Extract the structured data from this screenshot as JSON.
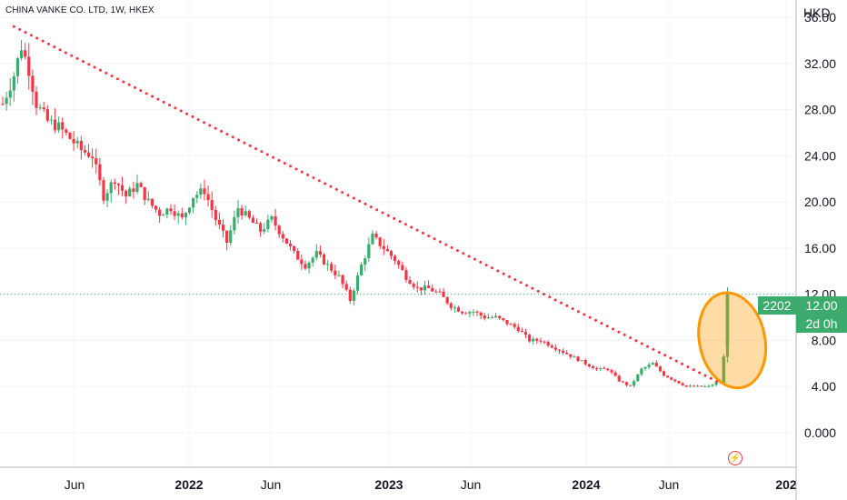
{
  "header": {
    "symbol_title": "CHINA VANKE CO. LTD, 1W, HKEX",
    "currency": "HKD"
  },
  "price_label": {
    "countdown_value": "2202",
    "price": "12.00",
    "time_left": "2d 0h"
  },
  "icons": {
    "flash": "lightning-icon"
  },
  "colors": {
    "up": "#3cab6d",
    "down": "#f23645",
    "trendline": "#f23645",
    "highlight": "#ff9800"
  },
  "chart_data": {
    "type": "candlestick",
    "title": "CHINA VANKE CO. LTD, 1W, HKEX",
    "y_axis": {
      "unit": "HKD",
      "ticks": [
        "36.00",
        "32.00",
        "28.00",
        "24.00",
        "20.00",
        "16.00",
        "12.00",
        "8.00",
        "4.00",
        "0.000"
      ],
      "range": [
        -3,
        37.5
      ]
    },
    "x_axis": {
      "labels": [
        "Jun",
        "2022",
        "Jun",
        "2023",
        "Jun",
        "2024",
        "Jun",
        "202"
      ],
      "range": [
        "2021-01-15",
        "2024-11-08"
      ]
    },
    "grid": true,
    "series_close_approx": [
      [
        "2021-01-15",
        28.5
      ],
      [
        "2021-02-05",
        31.0
      ],
      [
        "2021-02-19",
        33.5
      ],
      [
        "2021-03-05",
        31.5
      ],
      [
        "2021-03-19",
        28.5
      ],
      [
        "2021-04-09",
        27.0
      ],
      [
        "2021-04-30",
        26.5
      ],
      [
        "2021-05-21",
        25.5
      ],
      [
        "2021-06-11",
        24.5
      ],
      [
        "2021-07-02",
        24.0
      ],
      [
        "2021-07-23",
        20.5
      ],
      [
        "2021-08-13",
        22.0
      ],
      [
        "2021-09-03",
        20.5
      ],
      [
        "2021-09-24",
        21.5
      ],
      [
        "2021-10-15",
        20.0
      ],
      [
        "2021-11-05",
        19.0
      ],
      [
        "2021-11-26",
        19.5
      ],
      [
        "2021-12-17",
        18.5
      ],
      [
        "2022-01-07",
        20.5
      ],
      [
        "2022-01-28",
        21.0
      ],
      [
        "2022-02-18",
        18.5
      ],
      [
        "2022-03-11",
        16.5
      ],
      [
        "2022-04-01",
        19.5
      ],
      [
        "2022-04-22",
        18.5
      ],
      [
        "2022-05-13",
        17.5
      ],
      [
        "2022-06-03",
        18.5
      ],
      [
        "2022-06-24",
        17.0
      ],
      [
        "2022-07-15",
        15.5
      ],
      [
        "2022-08-05",
        14.5
      ],
      [
        "2022-08-26",
        15.5
      ],
      [
        "2022-09-16",
        14.5
      ],
      [
        "2022-10-07",
        13.5
      ],
      [
        "2022-10-28",
        11.5
      ],
      [
        "2022-11-18",
        14.5
      ],
      [
        "2022-12-09",
        17.0
      ],
      [
        "2022-12-30",
        16.0
      ],
      [
        "2023-01-20",
        15.0
      ],
      [
        "2023-02-10",
        13.5
      ],
      [
        "2023-03-03",
        12.5
      ],
      [
        "2023-03-24",
        12.5
      ],
      [
        "2023-04-14",
        12.0
      ],
      [
        "2023-05-05",
        11.0
      ],
      [
        "2023-05-26",
        10.5
      ],
      [
        "2023-06-16",
        10.5
      ],
      [
        "2023-07-07",
        10.0
      ],
      [
        "2023-07-28",
        10.0
      ],
      [
        "2023-08-18",
        9.5
      ],
      [
        "2023-09-08",
        9.0
      ],
      [
        "2023-09-29",
        8.0
      ],
      [
        "2023-10-20",
        8.0
      ],
      [
        "2023-11-10",
        7.5
      ],
      [
        "2023-12-01",
        7.0
      ],
      [
        "2023-12-22",
        6.5
      ],
      [
        "2024-01-12",
        6.0
      ],
      [
        "2024-02-02",
        5.5
      ],
      [
        "2024-02-23",
        5.5
      ],
      [
        "2024-03-15",
        4.5
      ],
      [
        "2024-04-05",
        4.0
      ],
      [
        "2024-04-26",
        5.5
      ],
      [
        "2024-05-17",
        6.0
      ],
      [
        "2024-06-07",
        5.0
      ],
      [
        "2024-06-28",
        4.5
      ],
      [
        "2024-07-19",
        4.0
      ],
      [
        "2024-08-09",
        4.0
      ],
      [
        "2024-08-30",
        4.0
      ],
      [
        "2024-09-20",
        4.5
      ],
      [
        "2024-09-27",
        6.5
      ],
      [
        "2024-10-04",
        12.0
      ]
    ],
    "trendline": {
      "start": [
        "2021-02-05",
        35.2
      ],
      "end": [
        "2024-09-20",
        4.3
      ],
      "style": "dotted"
    },
    "annotation": {
      "shape": "ellipse",
      "center": [
        "2024-10-01",
        8.0
      ]
    },
    "last_price": 12.0
  }
}
